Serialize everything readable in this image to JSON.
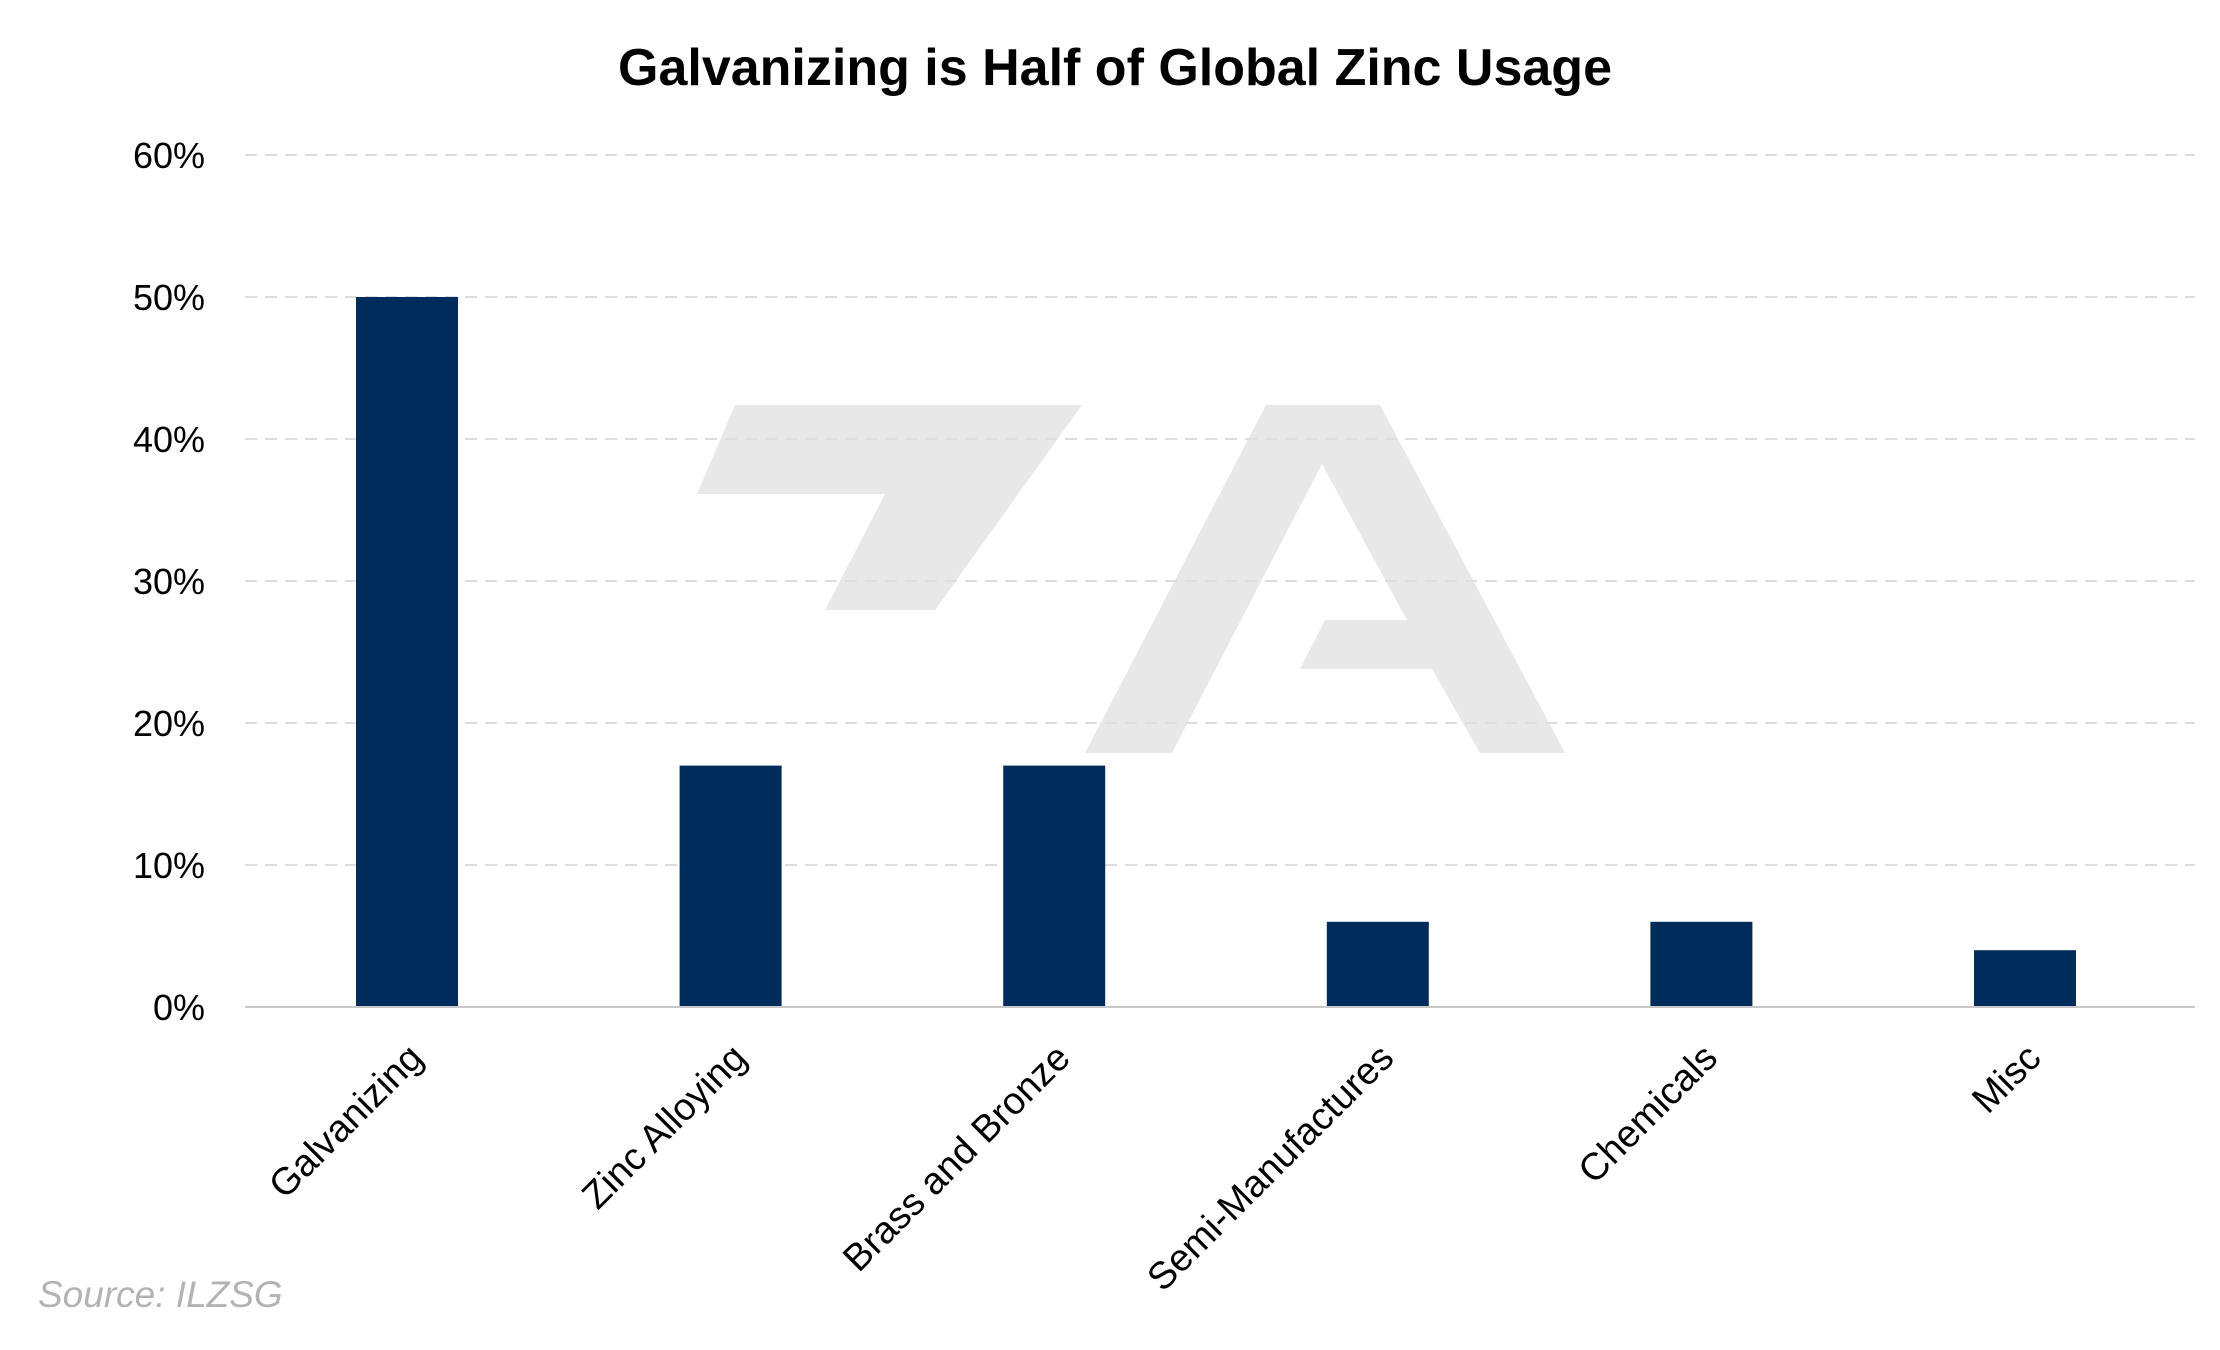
{
  "chart_data": {
    "type": "bar",
    "title": "Galvanizing is Half of Global Zinc Usage",
    "categories": [
      "Galvanizing",
      "Zinc Alloying",
      "Brass and Bronze",
      "Semi-Manufactures",
      "Chemicals",
      "Misc"
    ],
    "values": [
      50,
      17,
      17,
      6,
      6,
      4
    ],
    "ylim": [
      0,
      60
    ],
    "yticks": [
      0,
      10,
      20,
      30,
      40,
      50,
      60
    ],
    "ytick_suffix": "%",
    "grid": true,
    "legend": "none"
  },
  "colors": {
    "bar": "#002c5b",
    "grid": "#dedede",
    "axis": "#c8c8c8",
    "watermark": "#e8e8e8"
  },
  "source": "Source: ILZSG"
}
